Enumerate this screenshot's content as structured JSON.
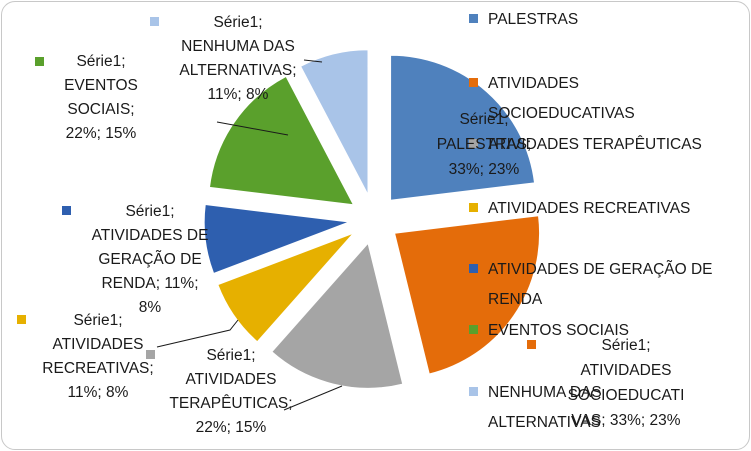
{
  "chart_data": {
    "type": "pie",
    "exploded": true,
    "title": "",
    "series": [
      {
        "name": "Série1",
        "categories": [
          "PALESTRAS",
          "ATIVIDADES SOCIOEDUCATIVAS",
          "ATIVIDADES TERAPÊUTICAS",
          "ATIVIDADES RECREATIVAS",
          "ATIVIDADES DE GERAÇÃO DE RENDA",
          "EVENTOS SOCIAIS",
          "NENHUMA DAS ALTERNATIVAS"
        ],
        "values": [
          33,
          33,
          22,
          11,
          11,
          22,
          11
        ],
        "percents": [
          "23%",
          "23%",
          "15%",
          "8%",
          "8%",
          "15%",
          "8%"
        ],
        "colors": [
          "#4f81bd",
          "#e46c0a",
          "#a5a5a5",
          "#e6b000",
          "#2e5faf",
          "#5aa02c",
          "#a9c4e8"
        ]
      }
    ],
    "data_labels": [
      [
        "Série1;",
        "PALESTRAS;",
        "33%; 23%"
      ],
      [
        "Série1;",
        "ATIVIDADES",
        "SOCIOEDUCATI",
        "VAS; 33%; 23%"
      ],
      [
        "Série1;",
        "ATIVIDADES",
        "TERAPÊUTICAS;",
        "22%; 15%"
      ],
      [
        "Série1;",
        "ATIVIDADES",
        "RECREATIVAS;",
        "11%; 8%"
      ],
      [
        "Série1;",
        "ATIVIDADES DE",
        "GERAÇÃO DE",
        "RENDA; 11%;",
        "8%"
      ],
      [
        "Série1;",
        "EVENTOS",
        "SOCIAIS;",
        "22%; 15%"
      ],
      [
        "Série1;",
        "NENHUMA DAS",
        "ALTERNATIVAS;",
        "11%; 8%"
      ]
    ],
    "legend": {
      "position": "right",
      "entries": [
        [
          "PALESTRAS"
        ],
        [
          "ATIVIDADES",
          "SOCIOEDUCATIVAS"
        ],
        [
          "ATIVIDADES TERAPÊUTICAS"
        ],
        [
          "ATIVIDADES RECREATIVAS"
        ],
        [
          "ATIVIDADES DE GERAÇÃO DE",
          "RENDA"
        ],
        [
          "EVENTOS SOCIAIS"
        ],
        [
          "NENHUMA DAS",
          "ALTERNATIVAS"
        ]
      ]
    }
  }
}
